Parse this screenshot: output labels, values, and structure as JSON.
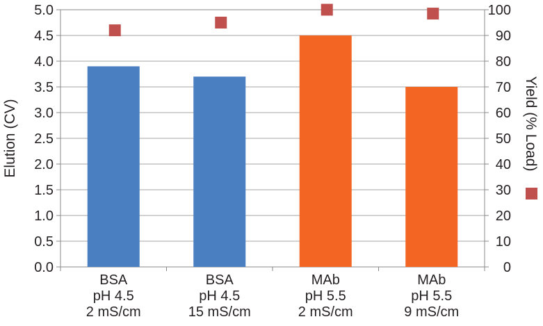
{
  "chart_data": {
    "type": "bar",
    "categories": [
      [
        "BSA",
        "pH 4.5",
        "2 mS/cm"
      ],
      [
        "BSA",
        "pH 4.5",
        "15 mS/cm"
      ],
      [
        "MAb",
        "pH 5.5",
        "2 mS/cm"
      ],
      [
        "MAb",
        "pH 5.5",
        "9 mS/cm"
      ]
    ],
    "series": [
      {
        "axis": "left",
        "type": "bar",
        "values": [
          3.9,
          3.7,
          4.5,
          3.5
        ],
        "colors": [
          "#4a7fc1",
          "#4a7fc1",
          "#f26522",
          "#f26522"
        ]
      },
      {
        "name": "Yield (% Load)",
        "axis": "right",
        "type": "scatter",
        "marker": "square",
        "values": [
          92,
          95,
          100,
          98.5
        ],
        "color": "#c0504d"
      }
    ],
    "ylabel": "Elution (CV)",
    "y2label": "Yield (% Load)",
    "ylim": [
      0,
      5
    ],
    "y2lim": [
      0,
      100
    ],
    "yticks": [
      "0.0",
      "0.5",
      "1.0",
      "1.5",
      "2.0",
      "2.5",
      "3.0",
      "3.5",
      "4.0",
      "4.5",
      "5.0"
    ],
    "y2ticks": [
      "0",
      "10",
      "20",
      "30",
      "40",
      "50",
      "60",
      "70",
      "80",
      "90",
      "100"
    ],
    "grid": true
  }
}
